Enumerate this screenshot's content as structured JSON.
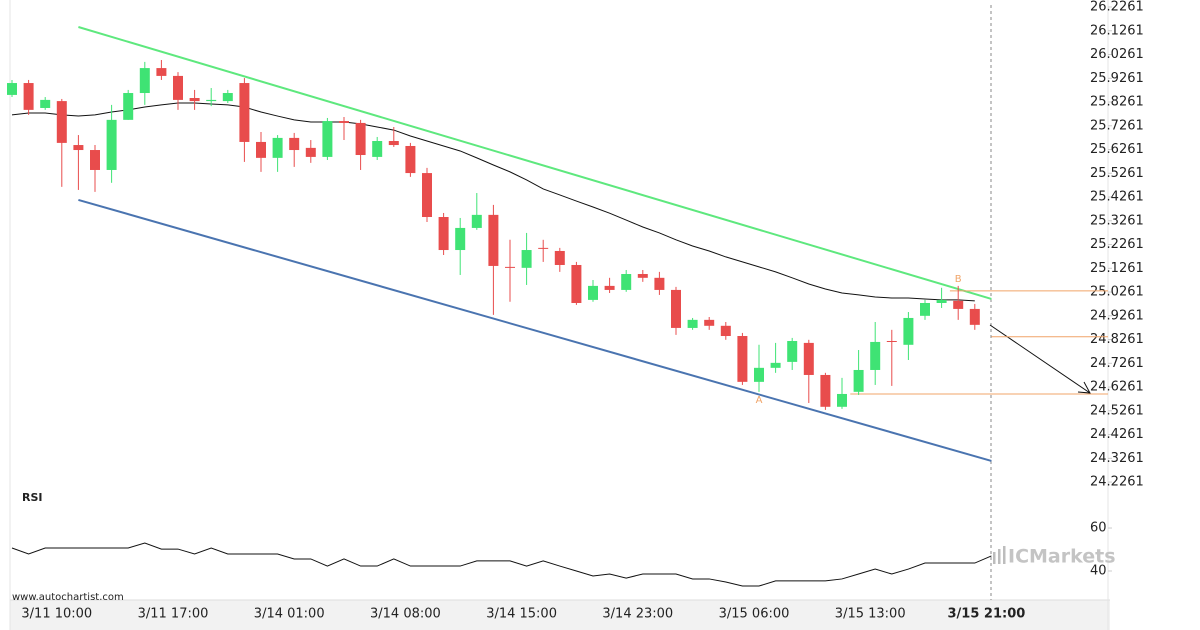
{
  "chart_data": [
    {
      "type": "candlestick",
      "categories": [
        null,
        null,
        null,
        "3/11 10:00",
        null,
        null,
        null,
        null,
        null,
        null,
        "3/11 17:00",
        null,
        null,
        null,
        null,
        null,
        null,
        "3/14 01:00",
        null,
        null,
        null,
        null,
        null,
        null,
        "3/14 08:00",
        null,
        null,
        null,
        null,
        null,
        null,
        "3/14 15:00",
        null,
        null,
        null,
        null,
        null,
        null,
        "3/14 23:00",
        null,
        null,
        null,
        null,
        null,
        null,
        "3/15 06:00",
        null,
        null,
        null,
        null,
        null,
        null,
        "3/15 13:00",
        null,
        null,
        null,
        null,
        null,
        null,
        "3/15 21:00"
      ],
      "open": [
        25.856,
        25.906,
        25.801,
        25.83,
        25.645,
        25.624,
        25.54,
        25.751,
        25.864,
        25.969,
        25.936,
        25.843,
        25.83,
        25.83,
        25.906,
        25.658,
        25.591,
        25.675,
        25.633,
        25.595,
        25.746,
        25.738,
        25.595,
        25.662,
        25.641,
        25.527,
        25.342,
        25.203,
        25.296,
        25.351,
        25.132,
        25.128,
        25.212,
        25.199,
        25.14,
        24.993,
        25.052,
        25.035,
        25.102,
        25.086,
        25.035,
        24.875,
        24.909,
        24.884,
        24.841,
        24.648,
        24.707,
        24.732,
        24.812,
        24.677,
        24.543,
        24.606,
        24.698,
        24.82,
        24.804,
        24.926,
        24.98,
        24.989,
        24.955,
        null
      ],
      "high": [
        25.919,
        25.919,
        25.847,
        25.839,
        25.687,
        25.645,
        25.814,
        25.877,
        25.995,
        26.003,
        25.952,
        25.877,
        25.885,
        25.877,
        25.927,
        25.7,
        25.687,
        25.696,
        25.666,
        25.759,
        25.763,
        25.751,
        25.679,
        25.721,
        25.654,
        25.549,
        25.359,
        25.338,
        25.443,
        25.393,
        25.246,
        25.275,
        25.246,
        25.212,
        25.153,
        25.077,
        25.086,
        25.119,
        25.119,
        25.111,
        25.048,
        24.917,
        24.921,
        24.9,
        24.854,
        24.804,
        24.812,
        24.833,
        24.825,
        24.686,
        24.665,
        24.782,
        24.9,
        24.867,
        24.942,
        24.993,
        25.044,
        25.052,
        24.976,
        null
      ],
      "low": [
        25.847,
        25.772,
        25.793,
        25.469,
        25.456,
        25.448,
        25.486,
        25.751,
        25.814,
        25.919,
        25.793,
        25.793,
        25.809,
        25.822,
        25.574,
        25.532,
        25.532,
        25.553,
        25.57,
        25.582,
        25.666,
        25.54,
        25.582,
        25.637,
        25.511,
        25.321,
        25.182,
        25.098,
        25.288,
        24.93,
        24.985,
        25.056,
        25.153,
        25.111,
        24.972,
        24.985,
        25.022,
        25.027,
        25.069,
        25.014,
        24.846,
        24.867,
        24.867,
        24.825,
        24.635,
        24.606,
        24.686,
        24.698,
        24.559,
        24.53,
        24.534,
        24.593,
        24.635,
        24.631,
        24.74,
        24.909,
        24.959,
        24.909,
        24.867,
        null
      ],
      "close": [
        25.906,
        25.793,
        25.835,
        25.654,
        25.624,
        25.54,
        25.751,
        25.864,
        25.969,
        25.936,
        25.835,
        25.83,
        25.835,
        25.864,
        25.658,
        25.591,
        25.675,
        25.624,
        25.595,
        25.746,
        25.738,
        25.603,
        25.662,
        25.645,
        25.527,
        25.342,
        25.203,
        25.296,
        25.351,
        25.136,
        25.128,
        25.203,
        25.208,
        25.14,
        24.98,
        25.052,
        25.035,
        25.102,
        25.086,
        25.035,
        24.875,
        24.909,
        24.884,
        24.841,
        24.648,
        24.707,
        24.728,
        24.82,
        24.677,
        24.543,
        24.597,
        24.698,
        24.816,
        24.816,
        24.917,
        24.98,
        24.993,
        24.955,
        24.888,
        null
      ],
      "up_color": "#3fe374",
      "down_color": "#e84c4c",
      "series": [
        {
          "color": "#111111",
          "values": [
            25.772,
            25.78,
            25.78,
            25.772,
            25.767,
            25.772,
            25.784,
            25.793,
            25.805,
            25.814,
            25.822,
            25.822,
            25.818,
            25.814,
            25.805,
            25.784,
            25.767,
            25.751,
            25.742,
            25.742,
            25.742,
            25.734,
            25.721,
            25.708,
            25.683,
            25.662,
            25.641,
            25.62,
            25.591,
            25.561,
            25.532,
            25.498,
            25.46,
            25.435,
            25.409,
            25.384,
            25.358,
            25.329,
            25.3,
            25.275,
            25.246,
            25.22,
            25.199,
            25.174,
            25.153,
            25.132,
            25.111,
            25.086,
            25.06,
            25.039,
            25.022,
            25.014,
            25.005,
            25.001,
            25.001,
            24.997,
            24.993,
            24.993,
            24.989,
            null
          ]
        }
      ],
      "resistance": {
        "color": "#5ee87e",
        "values": [
          26.142,
          24.997
        ]
      },
      "support": {
        "color": "#4a74b0",
        "values": [
          25.414,
          24.315
        ]
      },
      "levels": {
        "color": "#f0a468",
        "values": [
          25.031,
          24.838,
          24.597
        ]
      },
      "points": [
        {
          "label": "A",
          "value": 24.597
        },
        {
          "label": "B",
          "value": 25.052
        }
      ],
      "ylim": [
        24.1927,
        26.2556
      ],
      "yticks": [
        26.2261,
        26.1261,
        26.0261,
        25.9261,
        25.8261,
        25.7261,
        25.6261,
        25.5261,
        25.4261,
        25.3261,
        25.2261,
        25.1261,
        25.0261,
        24.9261,
        24.8261,
        24.7261,
        24.6261,
        24.5261,
        24.4261,
        24.3261,
        24.2261
      ],
      "source": "www.autochartist.com",
      "brand": "ICMarkets"
    },
    {
      "type": "line",
      "title": "RSI",
      "color": "#111111",
      "values": [
        50.7,
        47.9,
        50.7,
        50.7,
        50.7,
        50.7,
        50.7,
        50.7,
        53.0,
        50.2,
        50.2,
        47.9,
        50.7,
        47.9,
        47.9,
        47.9,
        47.9,
        45.6,
        45.6,
        42.3,
        45.6,
        42.3,
        42.3,
        45.6,
        42.3,
        42.3,
        42.3,
        42.3,
        44.7,
        44.7,
        44.7,
        42.3,
        44.7,
        42.3,
        40.0,
        37.7,
        38.6,
        36.7,
        38.6,
        38.6,
        38.6,
        36.3,
        36.3,
        34.9,
        33.0,
        33.0,
        35.4,
        35.4,
        35.4,
        35.4,
        36.3,
        38.6,
        40.9,
        38.6,
        40.9,
        43.7,
        43.7,
        43.7,
        43.7,
        47.0
      ],
      "ylim": [
        26.5,
        77.7
      ],
      "yticks": [
        60,
        40
      ]
    }
  ]
}
